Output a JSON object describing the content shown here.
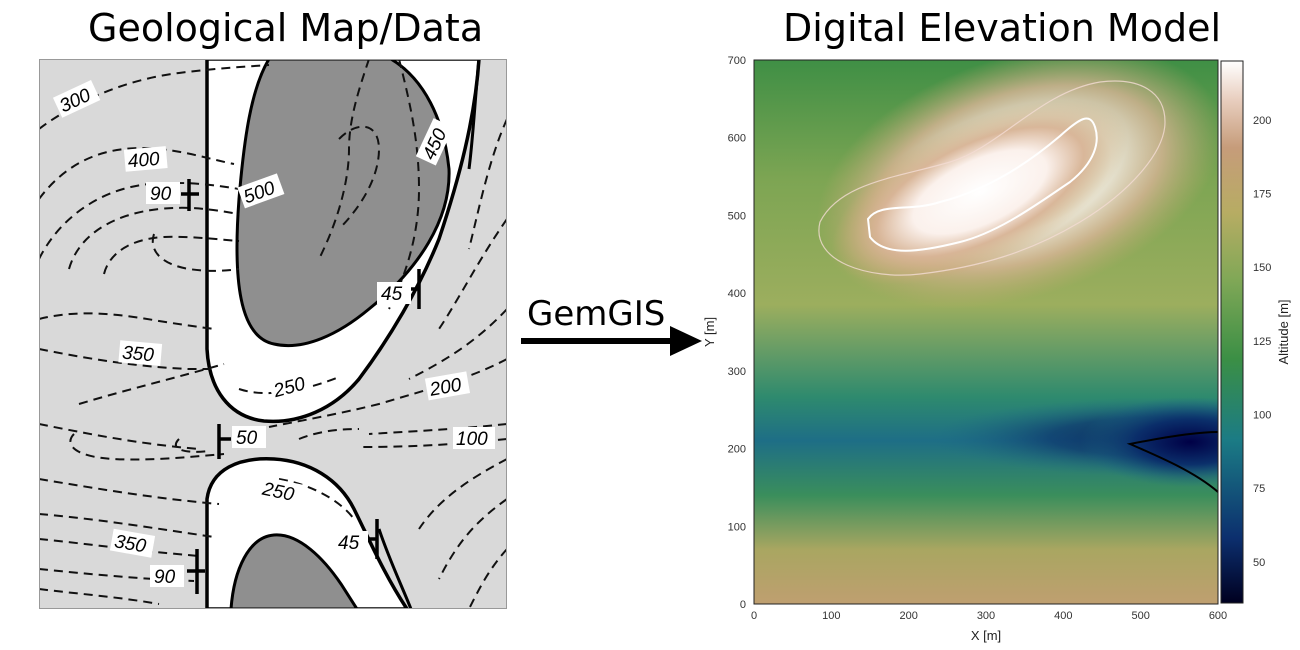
{
  "left_panel": {
    "title": "Geological Map/Data",
    "contour_labels": [
      {
        "text": "300",
        "rot": -25
      },
      {
        "text": "400",
        "rot": -5
      },
      {
        "text": "500",
        "rot": -20
      },
      {
        "text": "450",
        "rot": -65
      },
      {
        "text": "350",
        "rot": 5
      },
      {
        "text": "250",
        "rot": -15
      },
      {
        "text": "200",
        "rot": -10
      },
      {
        "text": "100",
        "rot": 0
      },
      {
        "text": "250",
        "rot": 12
      },
      {
        "text": "350",
        "rot": 10
      }
    ],
    "dip_labels": [
      "90",
      "45",
      "50",
      "45",
      "90"
    ]
  },
  "arrow": {
    "label": "GemGIS"
  },
  "right_panel": {
    "title": "Digital Elevation Model"
  },
  "colors": {
    "background_gray": "#d9d9d9",
    "layer_gray": "#8f8f8f",
    "dem_low": "#000044",
    "dem_high": "#ffffff"
  },
  "chart_data": {
    "type": "heatmap",
    "xlabel": "X [m]",
    "ylabel": "Y [m]",
    "colorbar_label": "Altitude [m]",
    "xlim": [
      0,
      600
    ],
    "ylim": [
      0,
      700
    ],
    "x_ticks": [
      0,
      100,
      200,
      300,
      400,
      500,
      600
    ],
    "y_ticks": [
      0,
      100,
      200,
      300,
      400,
      500,
      600,
      700
    ],
    "colorbar_range": [
      36,
      220
    ],
    "colorbar_ticks": [
      50,
      75,
      100,
      125,
      150,
      175,
      200
    ],
    "colormap": "gist_earth",
    "features": [
      {
        "name": "ridge",
        "x": 340,
        "y": 540,
        "altitude": 220
      },
      {
        "name": "valley",
        "x": 580,
        "y": 185,
        "altitude": 36
      }
    ],
    "contour_levels": [
      50,
      200
    ]
  }
}
